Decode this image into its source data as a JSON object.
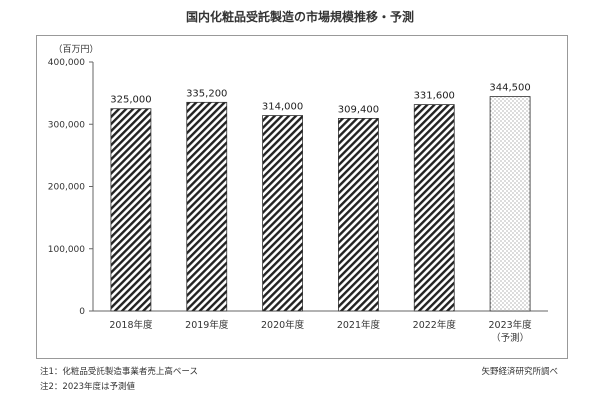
{
  "title": "国内化粧品受託製造の市場規模推移・予測",
  "notes": {
    "note1": "注1：化粧品受託製造事業者売上高ベース",
    "note2": "注2：2023年度は予測値",
    "source": "矢野経済研究所調べ"
  },
  "chart_data": {
    "type": "bar",
    "unit_label": "（百万円）",
    "categories": [
      "2018年度",
      "2019年度",
      "2020年度",
      "2021年度",
      "2022年度",
      "2023年度"
    ],
    "category_sublabels": [
      "",
      "",
      "",
      "",
      "",
      "（予測）"
    ],
    "values": [
      325000,
      335200,
      314000,
      309400,
      331600,
      344500
    ],
    "value_labels": [
      "325,000",
      "335,200",
      "314,000",
      "309,400",
      "331,600",
      "344,500"
    ],
    "forecast": [
      false,
      false,
      false,
      false,
      false,
      true
    ],
    "ylim": [
      0,
      400000
    ],
    "yticks": [
      0,
      100000,
      200000,
      300000,
      400000
    ],
    "ytick_labels": [
      "0",
      "100,000",
      "200,000",
      "300,000",
      "400,000"
    ],
    "grid": false,
    "colors": {
      "bar_stroke": "#333333",
      "hatch": "#222222",
      "dots": "#555555",
      "axis": "#666666"
    }
  }
}
